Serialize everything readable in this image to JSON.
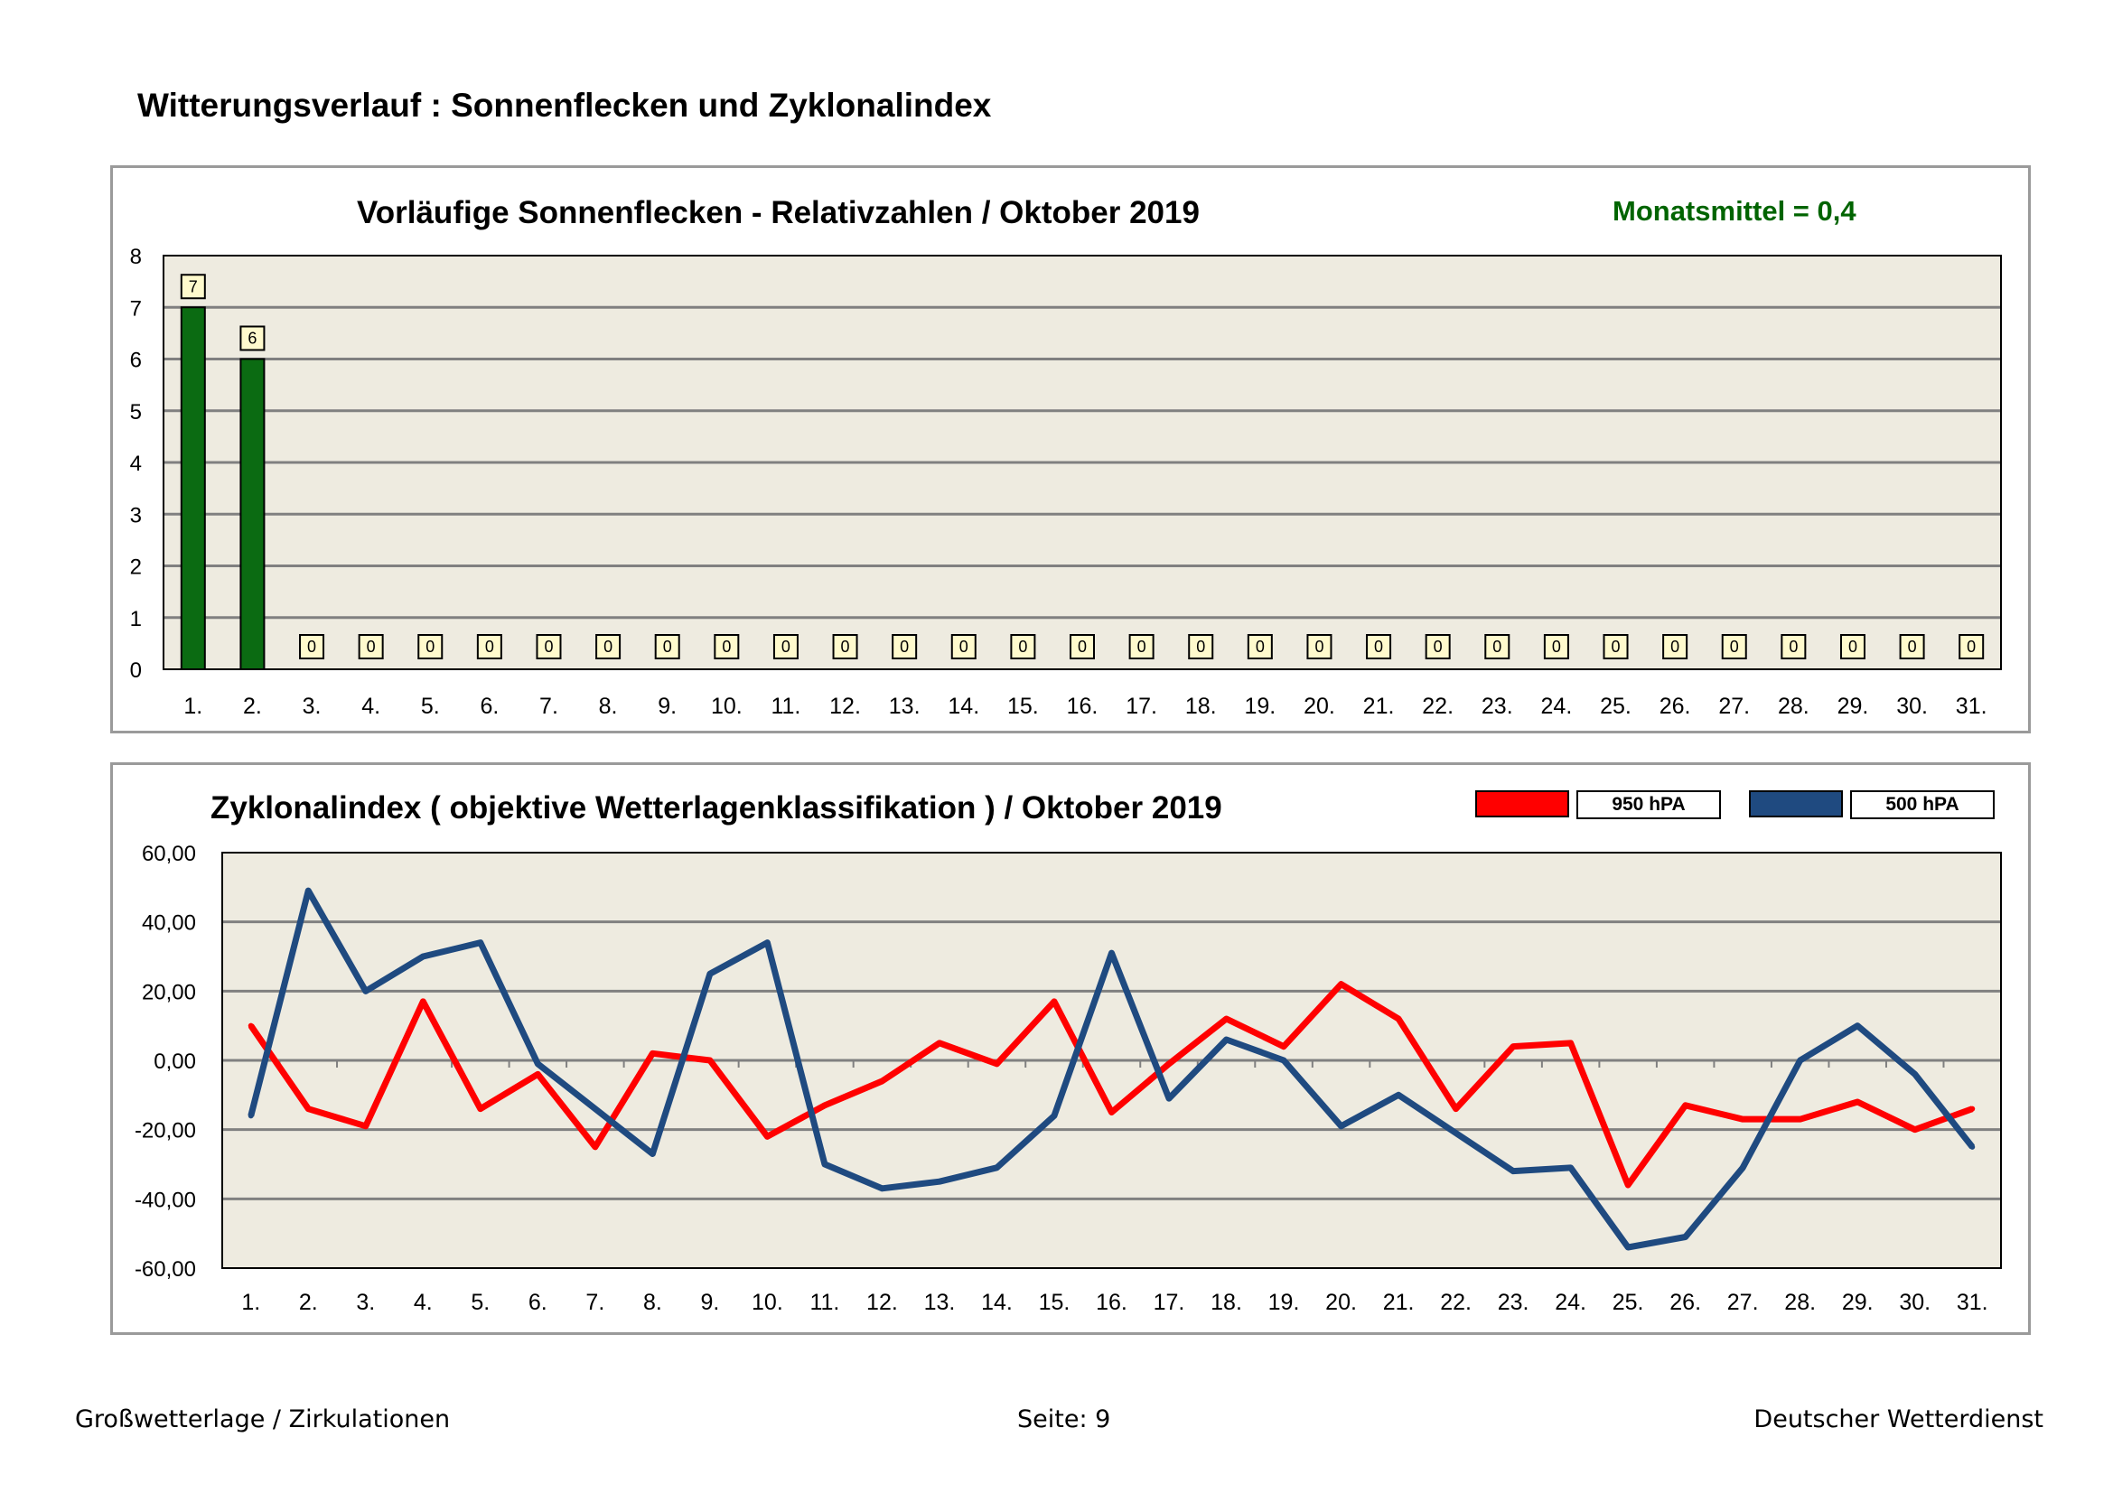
{
  "page": {
    "title": "Witterungsverlauf : Sonnenflecken und Zyklonalindex",
    "footer_left": "Großwetterlage / Zirkulationen",
    "footer_center": "Seite: 9",
    "footer_right": "Deutscher Wetterdienst"
  },
  "colors": {
    "plot_bg": "#eeebe0",
    "bar": "#0b6b12",
    "label_bg": "#fffacd",
    "grid": "#808080",
    "line_950": "#ff0000",
    "line_500": "#1f4a80",
    "mean_text": "#006400"
  },
  "chart_data": [
    {
      "type": "bar",
      "title": "Vorläufige Sonnenflecken - Relativzahlen  /   Oktober 2019",
      "annotation": "Monatsmittel = 0,4",
      "categories": [
        "1.",
        "2.",
        "3.",
        "4.",
        "5.",
        "6.",
        "7.",
        "8.",
        "9.",
        "10.",
        "11.",
        "12.",
        "13.",
        "14.",
        "15.",
        "16.",
        "17.",
        "18.",
        "19.",
        "20.",
        "21.",
        "22.",
        "23.",
        "24.",
        "25.",
        "26.",
        "27.",
        "28.",
        "29.",
        "30.",
        "31."
      ],
      "values": [
        7,
        6,
        0,
        0,
        0,
        0,
        0,
        0,
        0,
        0,
        0,
        0,
        0,
        0,
        0,
        0,
        0,
        0,
        0,
        0,
        0,
        0,
        0,
        0,
        0,
        0,
        0,
        0,
        0,
        0,
        0
      ],
      "ylim": [
        0,
        8
      ],
      "yticks": [
        "0",
        "1",
        "2",
        "3",
        "4",
        "5",
        "6",
        "7",
        "8"
      ],
      "grid": true
    },
    {
      "type": "line",
      "title": "Zyklonalindex  ( objektive Wetterlagenklassifikation )  /  Oktober 2019",
      "categories": [
        "1.",
        "2.",
        "3.",
        "4.",
        "5.",
        "6.",
        "7.",
        "8.",
        "9.",
        "10.",
        "11.",
        "12.",
        "13.",
        "14.",
        "15.",
        "16.",
        "17.",
        "18.",
        "19.",
        "20.",
        "21.",
        "22.",
        "23.",
        "24.",
        "25.",
        "26.",
        "27.",
        "28.",
        "29.",
        "30.",
        "31."
      ],
      "series": [
        {
          "name": "950 hPA",
          "color": "#ff0000",
          "values": [
            10,
            -14,
            -19,
            17,
            -14,
            -4,
            -25,
            2,
            0,
            -22,
            -13,
            -6,
            5,
            -1,
            17,
            -15,
            -1,
            12,
            4,
            22,
            12,
            -14,
            4,
            5,
            -36,
            -13,
            -17,
            -17,
            -12,
            -20,
            -14
          ]
        },
        {
          "name": "500 hPA",
          "color": "#1f4a80",
          "values": [
            -16,
            49,
            20,
            30,
            34,
            -1,
            -14,
            -27,
            25,
            34,
            -30,
            -37,
            -35,
            -31,
            -16,
            31,
            -11,
            6,
            0,
            -19,
            -10,
            -21,
            -32,
            -31,
            -54,
            -51,
            -31,
            0,
            10,
            -4,
            -25
          ]
        }
      ],
      "ylim": [
        -60,
        60
      ],
      "yticks": [
        "-60,00",
        "-40,00",
        "-20,00",
        "0,00",
        "20,00",
        "40,00",
        "60,00"
      ],
      "grid": true,
      "legend": "top-right"
    }
  ]
}
